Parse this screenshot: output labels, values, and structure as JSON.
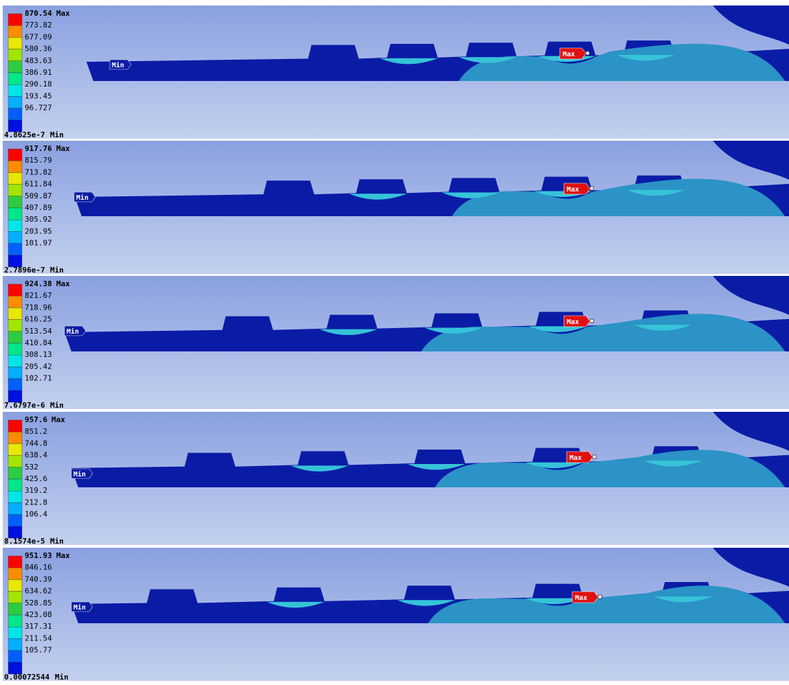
{
  "panels": [
    {
      "max": {
        "value": "870.54",
        "label": "Max"
      },
      "levels": [
        "773.82",
        "677.09",
        "580.36",
        "483.63",
        "386.91",
        "290.18",
        "193.45",
        "96.727"
      ],
      "min": {
        "value": "4.8625e-7",
        "label": "Min"
      },
      "min_marker": "Min",
      "max_marker": "Max"
    },
    {
      "max": {
        "value": "917.76",
        "label": "Max"
      },
      "levels": [
        "815.79",
        "713.82",
        "611.84",
        "509.87",
        "407.89",
        "305.92",
        "203.95",
        "101.97"
      ],
      "min": {
        "value": "2.7896e-7",
        "label": "Min"
      },
      "min_marker": "Min",
      "max_marker": "Max"
    },
    {
      "max": {
        "value": "924.38",
        "label": "Max"
      },
      "levels": [
        "821.67",
        "718.96",
        "616.25",
        "513.54",
        "410.84",
        "308.13",
        "205.42",
        "102.71"
      ],
      "min": {
        "value": "7.6797e-6",
        "label": "Min"
      },
      "min_marker": "Min",
      "max_marker": "Max"
    },
    {
      "max": {
        "value": "957.6",
        "label": "Max"
      },
      "levels": [
        "851.2",
        "744.8",
        "638.4",
        "532",
        "425.6",
        "319.2",
        "212.8",
        "106.4"
      ],
      "min": {
        "value": "8.1574e-5",
        "label": "Min"
      },
      "min_marker": "Min",
      "max_marker": "Max"
    },
    {
      "max": {
        "value": "951.93",
        "label": "Max"
      },
      "levels": [
        "846.16",
        "740.39",
        "634.62",
        "528.85",
        "423.08",
        "317.31",
        "211.54",
        "105.77"
      ],
      "min": {
        "value": "0.00072544",
        "label": "Min"
      },
      "min_marker": "Min",
      "max_marker": "Max"
    }
  ]
}
